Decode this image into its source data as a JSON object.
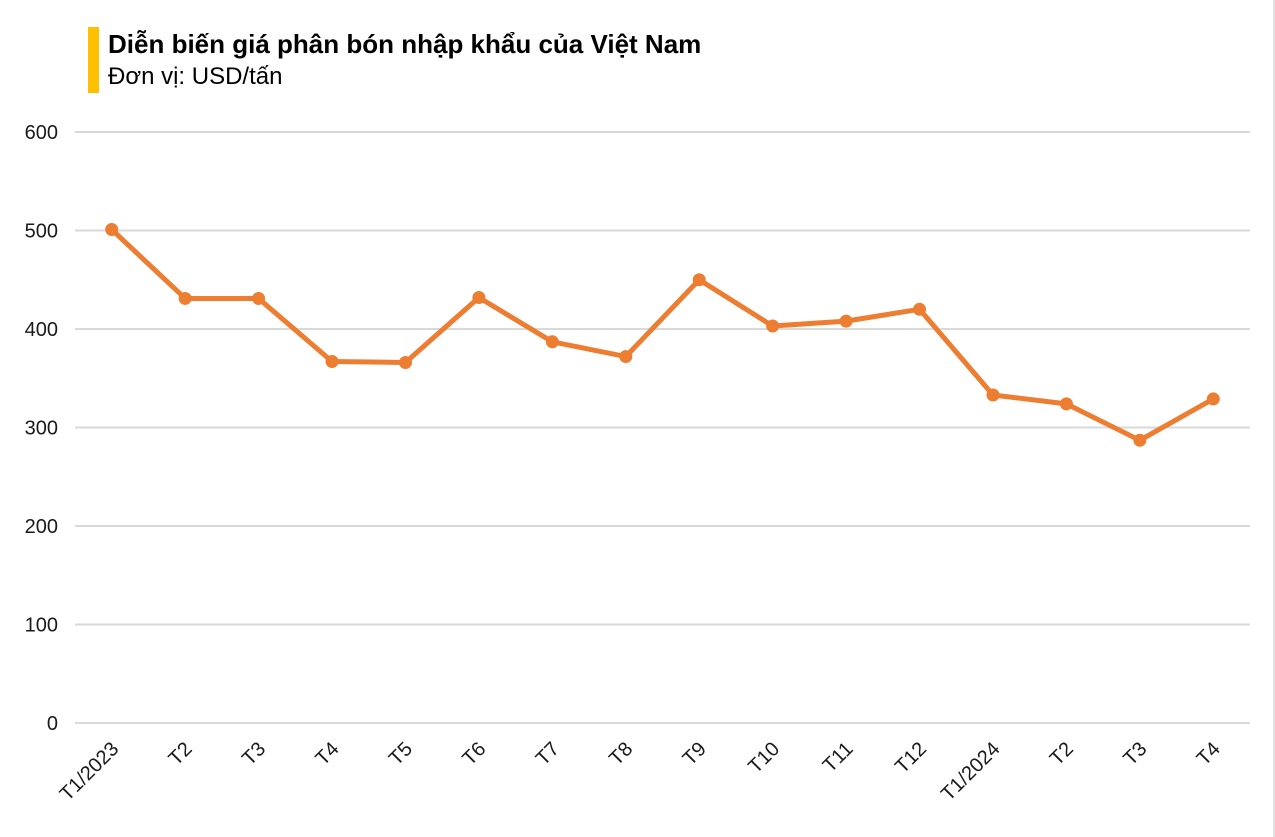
{
  "header": {
    "title": "Diễn biến giá phân bón nhập khẩu của Việt Nam",
    "subtitle": "Đơn vị: USD/tấn",
    "accent_color": "#FFC000"
  },
  "chart_data": {
    "type": "line",
    "title": "Diễn biến giá phân bón nhập khẩu của Việt Nam",
    "subtitle": "Đơn vị: USD/tấn",
    "unit": "USD/tấn",
    "categories": [
      "T1/2023",
      "T2",
      "T3",
      "T4",
      "T5",
      "T6",
      "T7",
      "T8",
      "T9",
      "T10",
      "T11",
      "T12",
      "T1/2024",
      "T2",
      "T3",
      "T4"
    ],
    "values": [
      501,
      431,
      431,
      367,
      366,
      432,
      387,
      372,
      450,
      403,
      408,
      420,
      333,
      324,
      287,
      329
    ],
    "ylim": [
      0,
      600
    ],
    "yticks": [
      0,
      100,
      200,
      300,
      400,
      500,
      600
    ],
    "xlabel": "",
    "ylabel": "",
    "grid": "horizontal",
    "legend_position": "none",
    "line_color": "#ED7D31",
    "marker": "circle",
    "gridline_color": "#D9D9D9",
    "tick_label_color": "#1a1a1a"
  }
}
